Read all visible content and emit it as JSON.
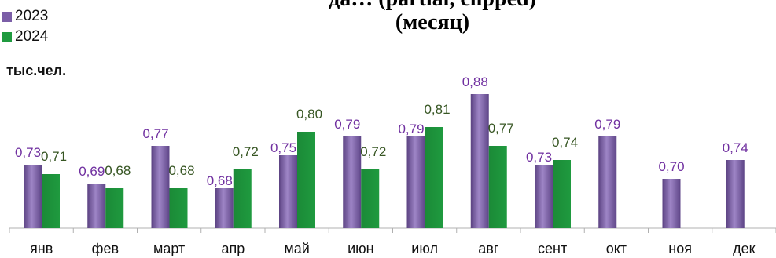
{
  "title_line1": "да… (partial, clipped)",
  "title_line2": "(месяц)",
  "unit_label": "тыс.чел.",
  "colors": {
    "s2023": "#7B5EA7",
    "s2024": "#1F9A3F",
    "label2023": "#7030A0",
    "label2024": "#375623"
  },
  "chart_data": {
    "type": "bar",
    "title": "(месяц)",
    "ylabel": "тыс.чел.",
    "categories": [
      "янв",
      "фев",
      "март",
      "апр",
      "май",
      "июн",
      "июл",
      "авг",
      "сент",
      "окт",
      "ноя",
      "дек"
    ],
    "series": [
      {
        "name": "2023",
        "values": [
          0.73,
          0.69,
          0.77,
          0.68,
          0.75,
          0.79,
          0.79,
          0.88,
          0.73,
          0.79,
          0.7,
          0.74
        ]
      },
      {
        "name": "2024",
        "values": [
          0.71,
          0.68,
          0.68,
          0.72,
          0.8,
          0.72,
          0.81,
          0.77,
          0.74,
          null,
          null,
          null
        ]
      }
    ],
    "value_labels": {
      "2023": [
        "0,73",
        "0,69",
        "0,77",
        "0,68",
        "0,75",
        "0,79",
        "0,79",
        "0,88",
        "0,73",
        "0,79",
        "0,70",
        "0,74"
      ],
      "2024": [
        "0,71",
        "0,68",
        "0,68",
        "0,72",
        "0,80",
        "0,72",
        "0,81",
        "0,77",
        "0,74",
        "",
        "",
        ""
      ]
    },
    "legend": "top-left",
    "grid": false
  }
}
